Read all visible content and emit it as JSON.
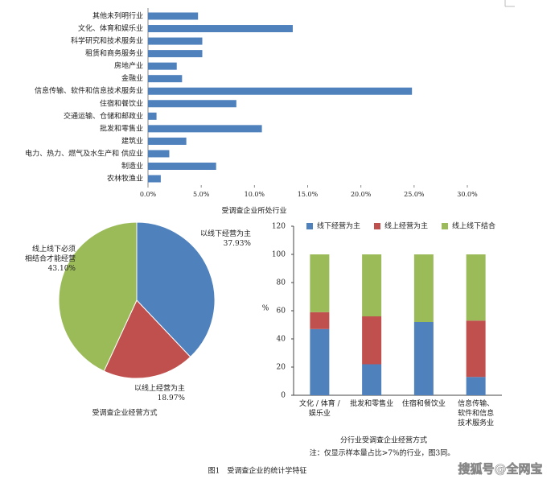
{
  "chart_data": [
    {
      "type": "barh",
      "xlabel": "受调查企业所处行业",
      "categories": [
        "其他未列明行业",
        "文化、体育和娱乐业",
        "科学研究和技术服务业",
        "租赁和商务服务业",
        "房地产业",
        "金融业",
        "信息传输、软件和信息技术服务业",
        "住宿和餐饮业",
        "交通运输、仓储和邮政业",
        "批发和零售业",
        "建筑业",
        "电力、热力、燃气及水生产和 供应业",
        "制造业",
        "农林牧渔业"
      ],
      "values": [
        4.7,
        13.6,
        5.1,
        5.1,
        2.7,
        3.2,
        24.8,
        8.3,
        0.8,
        10.7,
        3.6,
        2.0,
        6.4,
        1.2
      ],
      "color": "#4f81bd",
      "xlim": [
        0,
        30
      ],
      "xticks": [
        {
          "value": 0,
          "label": "0.0%"
        },
        {
          "value": 5,
          "label": "5.0%"
        },
        {
          "value": 10,
          "label": "10.0%"
        },
        {
          "value": 15,
          "label": "15.0%"
        },
        {
          "value": 20,
          "label": "20.0%"
        },
        {
          "value": 25,
          "label": "25.0%"
        },
        {
          "value": 30,
          "label": "30.0%"
        }
      ]
    },
    {
      "type": "pie",
      "title": "受调查企业经营方式",
      "categories": [
        "以线下经营为主",
        "以线上经营为主",
        "线上线下必须\n相结合才能经营"
      ],
      "values": [
        37.93,
        18.97,
        43.1
      ],
      "value_labels": [
        "37.93%",
        "18.97%",
        "43.10%"
      ],
      "colors": [
        "#4f81bd",
        "#c0504d",
        "#9bbb59"
      ]
    },
    {
      "type": "stacked_bar",
      "title": "分行业受调查企业经营方式",
      "ylabel": "%",
      "categories": [
        "文化 / 体育 /\n娱乐业",
        "批发和零售业",
        "住宿和餐饮业",
        "信息传输、\n软件和信息\n技术服务业"
      ],
      "series": [
        {
          "name": "线下经营为主",
          "color": "#4f81bd",
          "values": [
            47,
            22,
            52,
            13
          ]
        },
        {
          "name": "线上经营为主",
          "color": "#c0504d",
          "values": [
            12,
            34,
            0,
            40
          ]
        },
        {
          "name": "线上线下结合",
          "color": "#9bbb59",
          "values": [
            41,
            44,
            48,
            47
          ]
        }
      ],
      "ylim": [
        0,
        120
      ],
      "yticks": [
        0,
        20,
        40,
        60,
        80,
        100,
        120
      ]
    }
  ],
  "note": "注：仅显示样本量占比>7%的行业，图3同。",
  "caption": "图1　受调查企业的统计学特征",
  "watermark": "搜狐号@全网宝"
}
